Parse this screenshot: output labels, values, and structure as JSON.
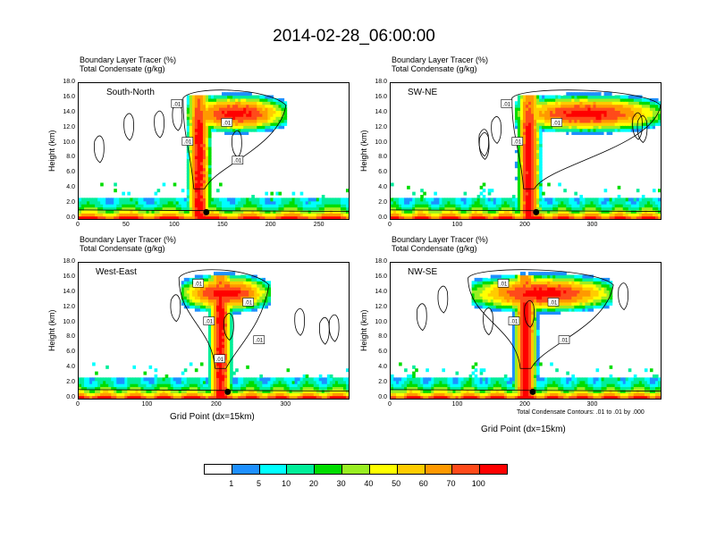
{
  "title": "2014-02-28_06:00:00",
  "panel_title_line1": "Boundary Layer Tracer    (%)",
  "panel_title_line2": "Total Condensate    (g/kg)",
  "y_axis_label": "Height (km)",
  "x_axis_label": "Grid Point (dx=15km)",
  "contour_note": "Total Condensate Contours: .01 to .01 by .000",
  "chart_data": [
    {
      "type": "heatmap",
      "label": "South-North",
      "ylim": [
        0,
        18
      ],
      "yticks": [
        "0.0",
        "2.0",
        "4.0",
        "6.0",
        "8.0",
        "10.0",
        "12.0",
        "14.0",
        "16.0",
        "18.0"
      ],
      "xlim": [
        0,
        280
      ],
      "xticks": [
        0,
        50,
        100,
        150,
        200,
        250
      ],
      "plume_center": 125,
      "anvil_left": 112,
      "anvil_right": 215,
      "contour_labels": [
        ".01",
        ".01",
        ".01",
        ".01"
      ]
    },
    {
      "type": "heatmap",
      "label": "SW-NE",
      "ylim": [
        0,
        18
      ],
      "yticks": [
        "0.0",
        "2.0",
        "4.0",
        "6.0",
        "8.0",
        "10.0",
        "12.0",
        "14.0",
        "16.0",
        "18.0"
      ],
      "xlim": [
        0,
        400
      ],
      "xticks": [
        0,
        100,
        200,
        300
      ],
      "plume_center": 205,
      "anvil_left": 185,
      "anvil_right": 400,
      "contour_labels": [
        ".01",
        ".01",
        ".01"
      ]
    },
    {
      "type": "heatmap",
      "label": "West-East",
      "ylim": [
        0,
        18
      ],
      "yticks": [
        "0.0",
        "2.0",
        "4.0",
        "6.0",
        "8.0",
        "10.0",
        "12.0",
        "14.0",
        "16.0",
        "18.0"
      ],
      "xlim": [
        0,
        390
      ],
      "xticks": [
        0,
        100,
        200,
        300
      ],
      "plume_center": 205,
      "anvil_left": 150,
      "anvil_right": 275,
      "contour_labels": [
        ".01",
        ".01",
        ".01",
        ".01",
        ".01"
      ]
    },
    {
      "type": "heatmap",
      "label": "NW-SE",
      "ylim": [
        0,
        18
      ],
      "yticks": [
        "0.0",
        "2.0",
        "4.0",
        "6.0",
        "8.0",
        "10.0",
        "12.0",
        "14.0",
        "16.0",
        "18.0"
      ],
      "xlim": [
        0,
        400
      ],
      "xticks": [
        0,
        100,
        200,
        300
      ],
      "plume_center": 200,
      "anvil_left": 120,
      "anvil_right": 330,
      "contour_labels": [
        ".01",
        ".01",
        ".01",
        ".01"
      ]
    }
  ],
  "legend": {
    "colors": [
      "#ffffff",
      "#1e90ff",
      "#00ffff",
      "#00ee99",
      "#00dd00",
      "#99ee22",
      "#ffff00",
      "#ffcc00",
      "#ff9900",
      "#ff4a1a",
      "#ff0000"
    ],
    "labels": [
      "1",
      "5",
      "10",
      "20",
      "30",
      "40",
      "50",
      "60",
      "70",
      "100"
    ]
  }
}
